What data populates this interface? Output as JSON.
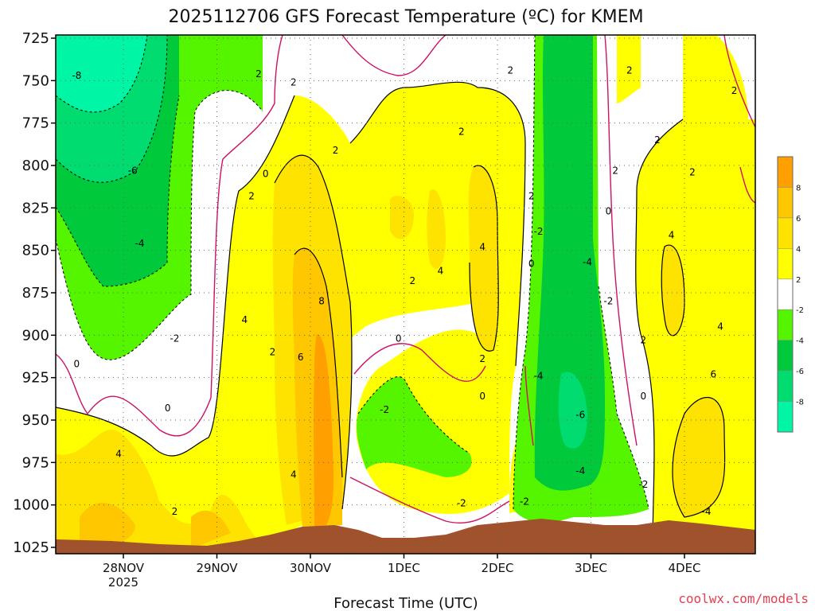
{
  "chart_data": {
    "type": "contour",
    "title": "2025112706 GFS Forecast Temperature (ºC) for KMEM",
    "xlabel": "Forecast Time (UTC)",
    "ylabel": "",
    "credit": "coolwx.com/models",
    "y_ticks": [
      "725",
      "750",
      "775",
      "800",
      "825",
      "850",
      "875",
      "900",
      "925",
      "950",
      "975",
      "1000",
      "1025"
    ],
    "y_range": [
      725,
      1025
    ],
    "y_scale": "pressure (hPa), inverted",
    "x_ticks": [
      {
        "label": "28NOV",
        "sub": "2025"
      },
      {
        "label": "29NOV",
        "sub": ""
      },
      {
        "label": "30NOV",
        "sub": ""
      },
      {
        "label": "1DEC",
        "sub": ""
      },
      {
        "label": "2DEC",
        "sub": ""
      },
      {
        "label": "3DEC",
        "sub": ""
      },
      {
        "label": "4DEC",
        "sub": ""
      }
    ],
    "grid": true,
    "legend": {
      "placement": "right",
      "colors": [
        "#00f5a5",
        "#00dc70",
        "#00c93c",
        "#55f500",
        "#ffffff",
        "#ffff00",
        "#ffe300",
        "#ffc700",
        "#ff9f00"
      ],
      "labels": [
        "-8",
        "-6",
        "-4",
        "-2",
        "2",
        "4",
        "6",
        "8"
      ]
    },
    "contour_labels": [
      {
        "text": "-8",
        "x": 0.03,
        "y": 747
      },
      {
        "text": "-6",
        "x": 0.11,
        "y": 803
      },
      {
        "text": "-4",
        "x": 0.12,
        "y": 846
      },
      {
        "text": "-2",
        "x": 0.17,
        "y": 902
      },
      {
        "text": "0",
        "x": 0.03,
        "y": 917
      },
      {
        "text": "0",
        "x": 0.16,
        "y": 943
      },
      {
        "text": "4",
        "x": 0.09,
        "y": 970
      },
      {
        "text": "2",
        "x": 0.17,
        "y": 1004
      },
      {
        "text": "2",
        "x": 0.29,
        "y": 746
      },
      {
        "text": "2",
        "x": 0.34,
        "y": 751
      },
      {
        "text": "2",
        "x": 0.28,
        "y": 818
      },
      {
        "text": "0",
        "x": 0.3,
        "y": 805
      },
      {
        "text": "2",
        "x": 0.4,
        "y": 791
      },
      {
        "text": "4",
        "x": 0.27,
        "y": 891
      },
      {
        "text": "2",
        "x": 0.31,
        "y": 910
      },
      {
        "text": "6",
        "x": 0.35,
        "y": 913
      },
      {
        "text": "8",
        "x": 0.38,
        "y": 880
      },
      {
        "text": "4",
        "x": 0.34,
        "y": 982
      },
      {
        "text": "2",
        "x": 0.51,
        "y": 868
      },
      {
        "text": "4",
        "x": 0.55,
        "y": 862
      },
      {
        "text": "0",
        "x": 0.49,
        "y": 902
      },
      {
        "text": "-2",
        "x": 0.47,
        "y": 944
      },
      {
        "text": "-2",
        "x": 0.58,
        "y": 999
      },
      {
        "text": "2",
        "x": 0.58,
        "y": 780
      },
      {
        "text": "2",
        "x": 0.65,
        "y": 744
      },
      {
        "text": "4",
        "x": 0.61,
        "y": 848
      },
      {
        "text": "2",
        "x": 0.61,
        "y": 914
      },
      {
        "text": "0",
        "x": 0.61,
        "y": 936
      },
      {
        "text": "2",
        "x": 0.68,
        "y": 818
      },
      {
        "text": "-2",
        "x": 0.69,
        "y": 839
      },
      {
        "text": "0",
        "x": 0.68,
        "y": 858
      },
      {
        "text": "-2",
        "x": 0.67,
        "y": 998
      },
      {
        "text": "-4",
        "x": 0.69,
        "y": 924
      },
      {
        "text": "-4",
        "x": 0.76,
        "y": 857
      },
      {
        "text": "-6",
        "x": 0.75,
        "y": 947
      },
      {
        "text": "-4",
        "x": 0.75,
        "y": 980
      },
      {
        "text": "-2",
        "x": 0.79,
        "y": 880
      },
      {
        "text": "2",
        "x": 0.82,
        "y": 744
      },
      {
        "text": "2",
        "x": 0.8,
        "y": 803
      },
      {
        "text": "0",
        "x": 0.79,
        "y": 827
      },
      {
        "text": "2",
        "x": 0.84,
        "y": 903
      },
      {
        "text": "0",
        "x": 0.84,
        "y": 936
      },
      {
        "text": "-2",
        "x": 0.84,
        "y": 988
      },
      {
        "text": "2",
        "x": 0.86,
        "y": 785
      },
      {
        "text": "2",
        "x": 0.91,
        "y": 804
      },
      {
        "text": "4",
        "x": 0.88,
        "y": 841
      },
      {
        "text": "4",
        "x": 0.95,
        "y": 895
      },
      {
        "text": "6",
        "x": 0.94,
        "y": 923
      },
      {
        "text": "-4",
        "x": 0.93,
        "y": 1004
      },
      {
        "text": "2",
        "x": 0.97,
        "y": 756
      }
    ]
  }
}
